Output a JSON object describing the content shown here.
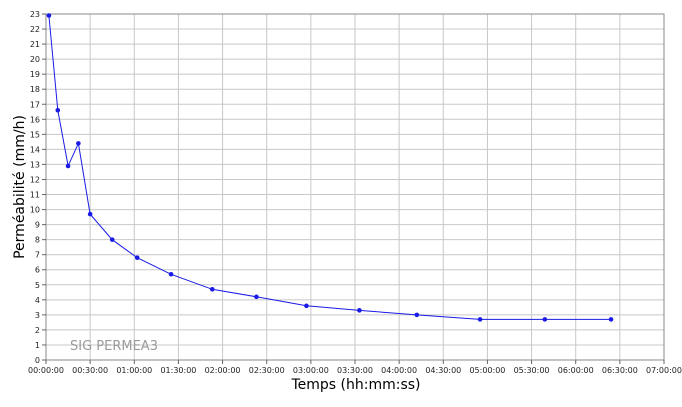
{
  "chart_data": {
    "type": "line",
    "xlabel": "Temps (hh:mm:ss)",
    "ylabel": "Perméabilité (mm/h)",
    "watermark": "SIG PERMEA3",
    "xlim": [
      0,
      420
    ],
    "ylim": [
      0,
      23
    ],
    "grid": true,
    "x_ticks": [
      {
        "v": 0,
        "label": "00:00:00"
      },
      {
        "v": 30,
        "label": "00:30:00"
      },
      {
        "v": 60,
        "label": "01:00:00"
      },
      {
        "v": 90,
        "label": "01:30:00"
      },
      {
        "v": 120,
        "label": "02:00:00"
      },
      {
        "v": 150,
        "label": "02:30:00"
      },
      {
        "v": 180,
        "label": "03:00:00"
      },
      {
        "v": 210,
        "label": "03:30:00"
      },
      {
        "v": 240,
        "label": "04:00:00"
      },
      {
        "v": 270,
        "label": "04:30:00"
      },
      {
        "v": 300,
        "label": "05:00:00"
      },
      {
        "v": 330,
        "label": "05:30:00"
      },
      {
        "v": 360,
        "label": "06:00:00"
      },
      {
        "v": 390,
        "label": "06:30:00"
      },
      {
        "v": 420,
        "label": "07:00:00"
      }
    ],
    "y_ticks": [
      0,
      1,
      2,
      3,
      4,
      5,
      6,
      7,
      8,
      9,
      10,
      11,
      12,
      13,
      14,
      15,
      16,
      17,
      18,
      19,
      20,
      21,
      22,
      23
    ],
    "series": [
      {
        "color": "#1a1ae6",
        "points": [
          {
            "x": 2,
            "y": 22.9
          },
          {
            "x": 8,
            "y": 16.6
          },
          {
            "x": 15,
            "y": 12.9
          },
          {
            "x": 22,
            "y": 14.4
          },
          {
            "x": 30,
            "y": 9.7
          },
          {
            "x": 45,
            "y": 8.0
          },
          {
            "x": 62,
            "y": 6.8
          },
          {
            "x": 85,
            "y": 5.7
          },
          {
            "x": 113,
            "y": 4.7
          },
          {
            "x": 143,
            "y": 4.2
          },
          {
            "x": 177,
            "y": 3.6
          },
          {
            "x": 213,
            "y": 3.3
          },
          {
            "x": 252,
            "y": 3.0
          },
          {
            "x": 295,
            "y": 2.7
          },
          {
            "x": 339,
            "y": 2.7
          },
          {
            "x": 384,
            "y": 2.7
          }
        ]
      }
    ]
  }
}
